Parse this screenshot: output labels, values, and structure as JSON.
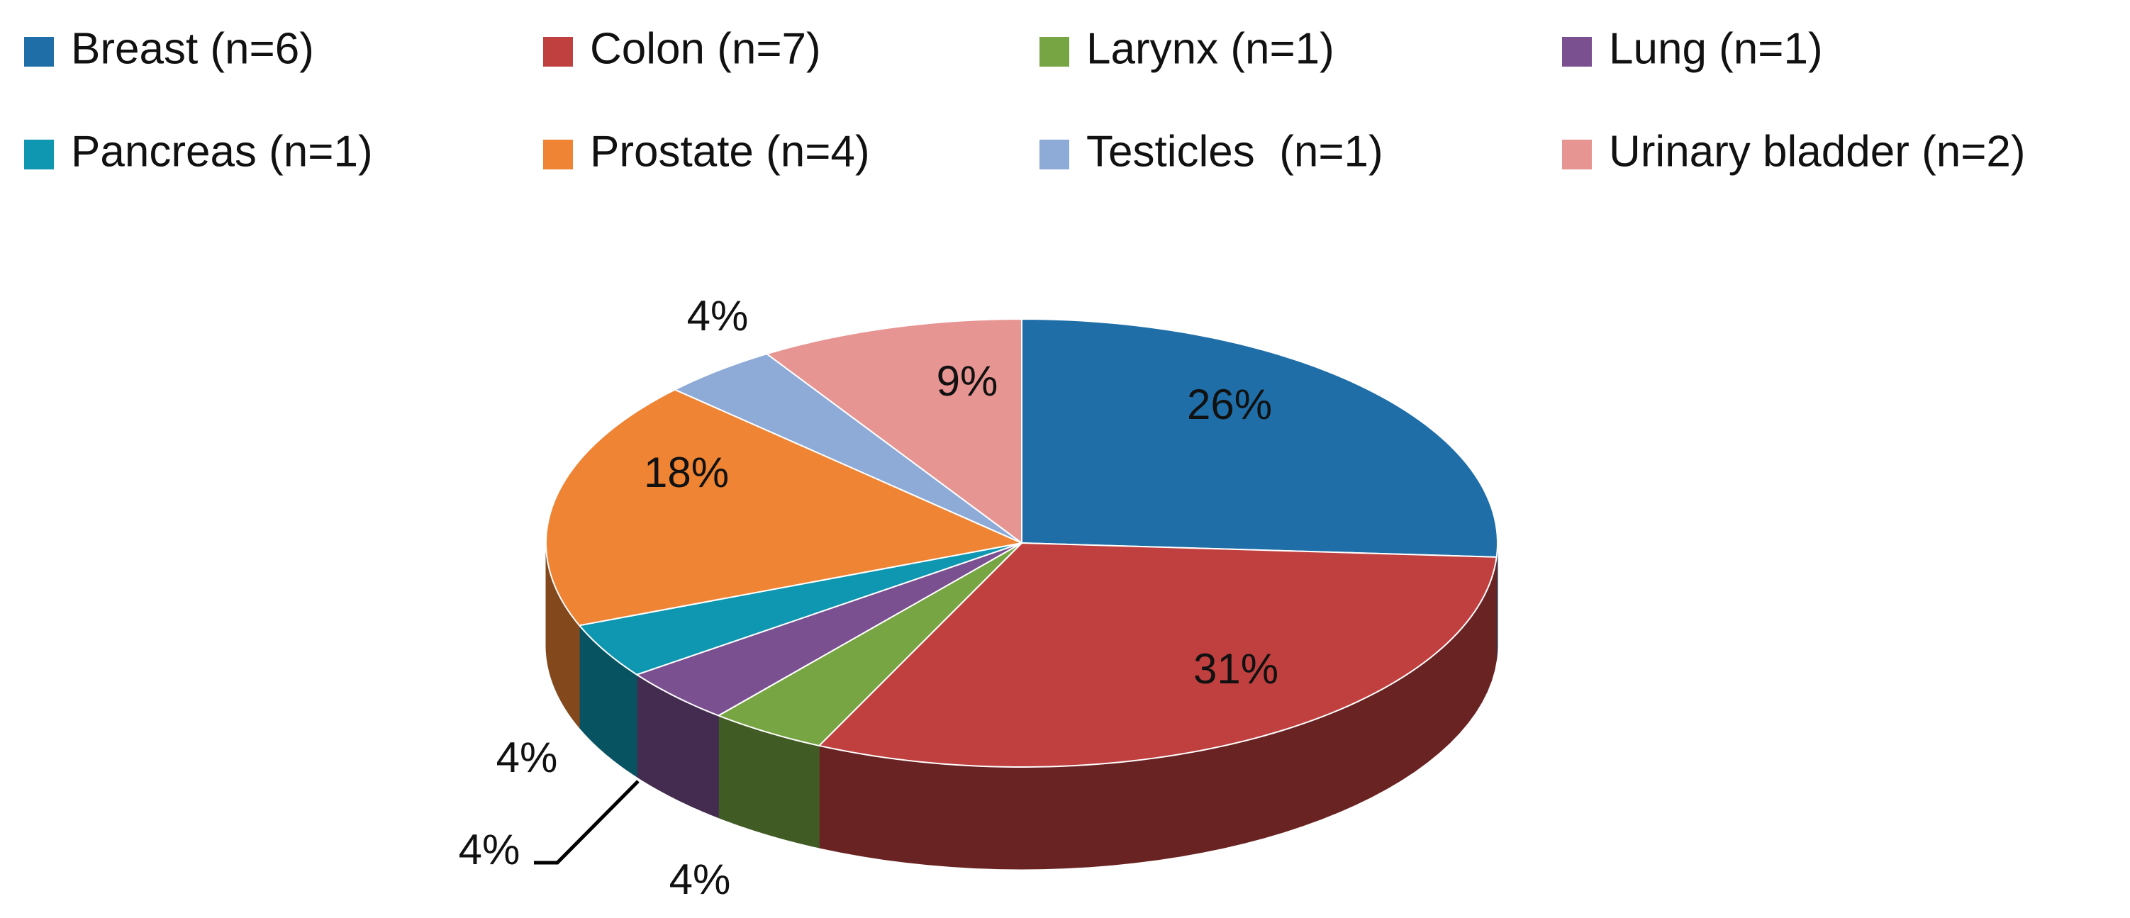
{
  "chart_data": {
    "type": "pie",
    "categories": [
      "Breast (n=6)",
      "Colon (n=7)",
      "Larynx (n=1)",
      "Lung (n=1)",
      "Pancreas (n=1)",
      "Prostate (n=4)",
      "Testicles  (n=1)",
      "Urinary bladder (n=2)"
    ],
    "values": [
      26,
      31,
      4,
      4,
      4,
      18,
      4,
      9
    ],
    "value_labels": [
      "26%",
      "31%",
      "4%",
      "4%",
      "4%",
      "18%",
      "4%",
      "9%"
    ],
    "colors": [
      "#1f6ea8",
      "#c0403f",
      "#77a543",
      "#7a5090",
      "#0f96b0",
      "#ee8434",
      "#8eaad6",
      "#e69592"
    ]
  }
}
